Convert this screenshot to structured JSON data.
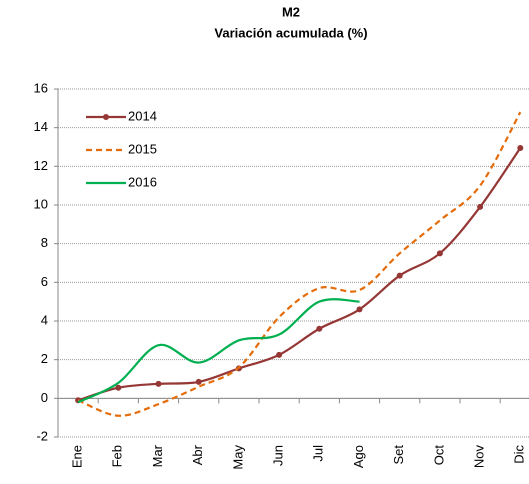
{
  "chart_data": {
    "type": "line",
    "title": "M2",
    "subtitle": "Variación acumulada  (%)",
    "categories": [
      "Ene",
      "Feb",
      "Mar",
      "Abr",
      "May",
      "Jun",
      "Jul",
      "Ago",
      "Set",
      "Oct",
      "Nov",
      "Dic"
    ],
    "series": [
      {
        "name": "2014",
        "color": "#953735",
        "dash": "solid",
        "markers": true,
        "values": [
          -0.1,
          0.55,
          0.75,
          0.85,
          1.55,
          2.25,
          3.6,
          4.6,
          6.35,
          7.5,
          9.9,
          12.95
        ]
      },
      {
        "name": "2015",
        "color": "#e46c0a",
        "dash": "dashed",
        "markers": false,
        "values": [
          -0.1,
          -0.9,
          -0.3,
          0.6,
          1.6,
          4.2,
          5.7,
          5.6,
          7.5,
          9.2,
          11.0,
          14.8
        ]
      },
      {
        "name": "2016",
        "color": "#00b050",
        "dash": "solid",
        "markers": false,
        "values": [
          -0.2,
          0.8,
          2.75,
          1.85,
          3.0,
          3.3,
          5.0,
          5.0,
          null,
          null,
          null,
          null
        ]
      }
    ],
    "ylim": [
      -2,
      16
    ],
    "yticks": [
      -2,
      0,
      2,
      4,
      6,
      8,
      10,
      12,
      14,
      16
    ],
    "grid": true,
    "legend": "upper left"
  }
}
